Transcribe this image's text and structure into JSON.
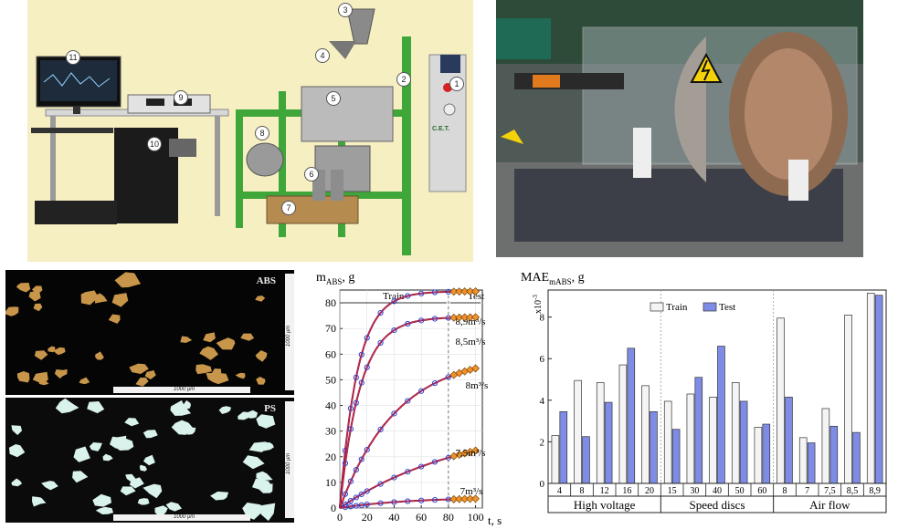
{
  "machine": {
    "badges": [
      "1",
      "2",
      "3",
      "4",
      "5",
      "6",
      "7",
      "8",
      "9",
      "10",
      "11"
    ],
    "panel_brand": "C.E.T."
  },
  "micrographs": [
    {
      "label": "ABS",
      "scale_h": "1000 μm",
      "scale_v": "1000 μm"
    },
    {
      "label": "PS",
      "scale_h": "1000 μm",
      "scale_v": "1000 μm"
    }
  ],
  "colors": {
    "train_bar": "#f4f4f4",
    "test_bar": "#7f8ce6",
    "curve": "#8a0f4e",
    "fit": "#d83a3a",
    "marker_test": "#f0922b"
  },
  "chart_data": [
    {
      "type": "line",
      "title": "",
      "ylabel": "m",
      "ylabel_sub": "ABS",
      "ylabel_unit": ", g",
      "xlabel": "t, s",
      "xlim": [
        0,
        105
      ],
      "ylim": [
        0,
        85
      ],
      "xticks": [
        0,
        20,
        40,
        60,
        80,
        100
      ],
      "yticks": [
        0,
        10,
        20,
        30,
        40,
        50,
        60,
        70,
        80
      ],
      "region_labels": {
        "train": "Train",
        "test": "Test",
        "split_x": 80
      },
      "series": [
        {
          "name": "8,9m³/s",
          "asymptote": 84.5,
          "tau": 13
        },
        {
          "name": "8,5m³/s",
          "asymptote": 74.5,
          "tau": 15
        },
        {
          "name": "8m³/s",
          "asymptote": 60,
          "tau": 42
        },
        {
          "name": "7,5m³/s",
          "asymptote": 34,
          "tau": 93
        },
        {
          "name": "7m³/s",
          "asymptote": 4.2,
          "tau": 50
        }
      ],
      "sample_x": [
        4,
        8,
        12,
        16,
        20,
        30,
        40,
        50,
        60,
        70,
        80,
        84,
        88,
        92,
        96,
        100
      ]
    },
    {
      "type": "bar",
      "title": "",
      "ylabel": "MAE",
      "ylabel_sub": "mABS",
      "ylabel_unit": ", g",
      "y_multiplier": "x10",
      "y_multiplier_exp": "-3",
      "ylim": [
        0,
        9.3
      ],
      "yticks": [
        0,
        2,
        4,
        6,
        8
      ],
      "legend": {
        "position": "top-left",
        "entries": [
          "Train",
          "Test"
        ]
      },
      "groups": [
        {
          "name": "High voltage",
          "categories": [
            "4",
            "8",
            "12",
            "16",
            "20"
          ],
          "series": [
            {
              "name": "Train",
              "values": [
                2.3,
                4.95,
                4.85,
                5.7,
                4.7
              ]
            },
            {
              "name": "Test",
              "values": [
                3.45,
                2.25,
                3.9,
                6.5,
                3.45
              ]
            }
          ]
        },
        {
          "name": "Speed discs",
          "categories": [
            "15",
            "30",
            "40",
            "50",
            "60"
          ],
          "series": [
            {
              "name": "Train",
              "values": [
                3.95,
                4.3,
                4.15,
                4.85,
                2.7
              ]
            },
            {
              "name": "Test",
              "values": [
                2.6,
                5.1,
                6.6,
                3.95,
                2.85
              ]
            }
          ]
        },
        {
          "name": "Air flow",
          "categories": [
            "8",
            "7",
            "7,5",
            "8,5",
            "8,9"
          ],
          "series": [
            {
              "name": "Train",
              "values": [
                7.95,
                2.2,
                3.6,
                8.1,
                9.15
              ]
            },
            {
              "name": "Test",
              "values": [
                4.15,
                1.95,
                2.75,
                2.45,
                9.05
              ]
            }
          ]
        }
      ]
    }
  ]
}
